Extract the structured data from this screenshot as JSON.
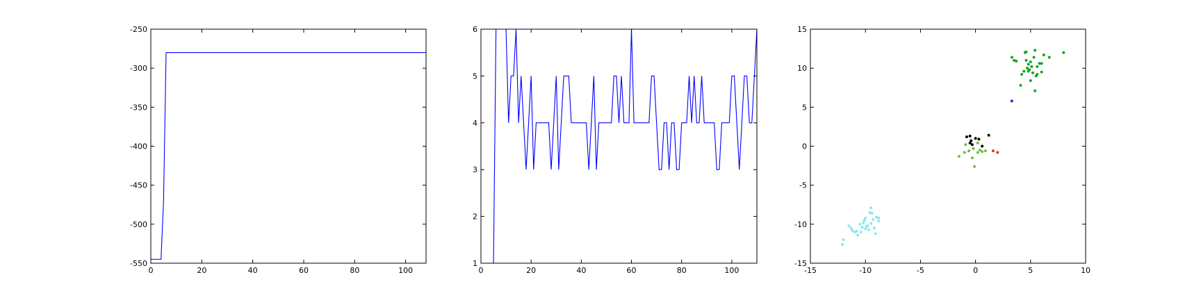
{
  "chart_data": [
    {
      "type": "line",
      "color": "#0000ff",
      "x": [
        0,
        4,
        5,
        6,
        108
      ],
      "values": [
        -545,
        -545,
        -470,
        -280,
        -280
      ],
      "xlim": [
        0,
        108
      ],
      "xticks": [
        0,
        20,
        40,
        60,
        80,
        100
      ],
      "ylim": [
        -550,
        -250
      ],
      "yticks": [
        -550,
        -500,
        -450,
        -400,
        -350,
        -300,
        -250
      ]
    },
    {
      "type": "line",
      "color": "#0000ff",
      "x": [
        0,
        1,
        2,
        3,
        4,
        5,
        6,
        7,
        8,
        9,
        10,
        11,
        12,
        13,
        14,
        15,
        16,
        17,
        18,
        19,
        20,
        21,
        22,
        23,
        24,
        25,
        26,
        27,
        28,
        29,
        30,
        31,
        32,
        33,
        34,
        35,
        36,
        37,
        38,
        39,
        40,
        41,
        42,
        43,
        44,
        45,
        46,
        47,
        48,
        49,
        50,
        51,
        52,
        53,
        54,
        55,
        56,
        57,
        58,
        59,
        60,
        61,
        62,
        63,
        64,
        65,
        66,
        67,
        68,
        69,
        70,
        71,
        72,
        73,
        74,
        75,
        76,
        77,
        78,
        79,
        80,
        81,
        82,
        83,
        84,
        85,
        86,
        87,
        88,
        89,
        90,
        91,
        92,
        93,
        94,
        95,
        96,
        97,
        98,
        99,
        100,
        101,
        102,
        103,
        104,
        105,
        106,
        107,
        108,
        109,
        110
      ],
      "values": [
        1,
        1,
        1,
        1,
        1,
        1,
        6,
        6,
        6,
        6,
        6,
        4,
        5,
        5,
        6,
        4,
        5,
        4,
        3,
        4,
        5,
        3,
        4,
        4,
        4,
        4,
        4,
        4,
        3,
        4,
        5,
        3,
        4,
        5,
        5,
        5,
        4,
        4,
        4,
        4,
        4,
        4,
        4,
        3,
        4,
        5,
        3,
        4,
        4,
        4,
        4,
        4,
        4,
        5,
        5,
        4,
        5,
        4,
        4,
        4,
        6,
        4,
        4,
        4,
        4,
        4,
        4,
        4,
        5,
        5,
        4,
        3,
        3,
        4,
        4,
        3,
        4,
        4,
        3,
        3,
        4,
        4,
        4,
        5,
        4,
        5,
        4,
        4,
        5,
        4,
        4,
        4,
        4,
        4,
        3,
        3,
        4,
        4,
        4,
        4,
        5,
        5,
        4,
        3,
        4,
        5,
        5,
        4,
        4,
        5,
        6
      ],
      "xlim": [
        0,
        110
      ],
      "xticks": [
        0,
        20,
        40,
        60,
        80,
        100
      ],
      "ylim": [
        1,
        6
      ],
      "yticks": [
        1,
        2,
        3,
        4,
        5,
        6
      ]
    },
    {
      "type": "scatter",
      "xlim": [
        -15,
        10
      ],
      "xticks": [
        -15,
        -10,
        -5,
        0,
        5,
        10
      ],
      "ylim": [
        -15,
        15
      ],
      "yticks": [
        -15,
        -10,
        -5,
        0,
        5,
        10,
        15
      ],
      "series": [
        {
          "color": "#8ce8ea",
          "x": [
            -12.1,
            -12,
            -11.5,
            -11.3,
            -11,
            -10.8,
            -10.7,
            -10.5,
            -10.3,
            -10.2,
            -10,
            -10,
            -9.8,
            -9.6,
            -9.5,
            -9.5,
            -9.3,
            -9.2,
            -9.1,
            -9,
            -8.8,
            -8.8,
            -9.7,
            -10.4,
            -11.2,
            -9.4,
            -10.1,
            -9.9
          ],
          "y": [
            -12.6,
            -12,
            -10.2,
            -10.5,
            -11,
            -10.9,
            -11.4,
            -10,
            -10.4,
            -9.8,
            -10.6,
            -9.2,
            -10.2,
            -8.5,
            -7.9,
            -9.9,
            -9.4,
            -10.5,
            -11.2,
            -9.1,
            -9.6,
            -9.2,
            -10.7,
            -11,
            -10.8,
            -8.6,
            -9.5,
            -10.3
          ]
        },
        {
          "color": "#12a81e",
          "x": [
            3.3,
            3.5,
            3.7,
            4.2,
            4.1,
            4.5,
            4.6,
            4.6,
            4.7,
            4.8,
            4.8,
            4.9,
            5,
            5,
            5.2,
            5.3,
            5.4,
            5.4,
            5.5,
            5.6,
            5.6,
            5.8,
            6,
            6,
            6.2,
            6.7,
            8,
            5.1,
            4.4
          ],
          "y": [
            11.4,
            11,
            10.9,
            9.2,
            7.8,
            12,
            12.1,
            11,
            10,
            9.6,
            10.5,
            9.8,
            8.4,
            10.8,
            9.4,
            11.4,
            7.1,
            12.3,
            9,
            9.2,
            10.2,
            10.6,
            10.6,
            9.5,
            11.7,
            11.4,
            12,
            10.2,
            9.6
          ]
        },
        {
          "color": "#000000",
          "x": [
            -0.8,
            -0.5,
            -0.5,
            -0.3,
            0,
            0.3,
            0.6,
            1.2,
            -0.4
          ],
          "y": [
            1.2,
            1.3,
            0.4,
            0.2,
            1,
            0.9,
            0,
            1.4,
            0.7
          ]
        },
        {
          "color": "#66c23a",
          "x": [
            -1.5,
            -1,
            -0.9,
            -0.6,
            -0.3,
            -0.1,
            0.2,
            0.4,
            0.6,
            0.9,
            0.2,
            -0.2
          ],
          "y": [
            -1.3,
            -0.8,
            0.2,
            -0.6,
            -1.5,
            -2.6,
            -0.8,
            -0.5,
            -0.7,
            -0.6,
            0.4,
            -0.3
          ]
        },
        {
          "color": "#e0302a",
          "x": [
            1.6,
            2
          ],
          "y": [
            -0.6,
            -0.8
          ]
        },
        {
          "color": "#1f2fd0",
          "x": [
            3.3
          ],
          "y": [
            5.8
          ]
        }
      ]
    }
  ]
}
